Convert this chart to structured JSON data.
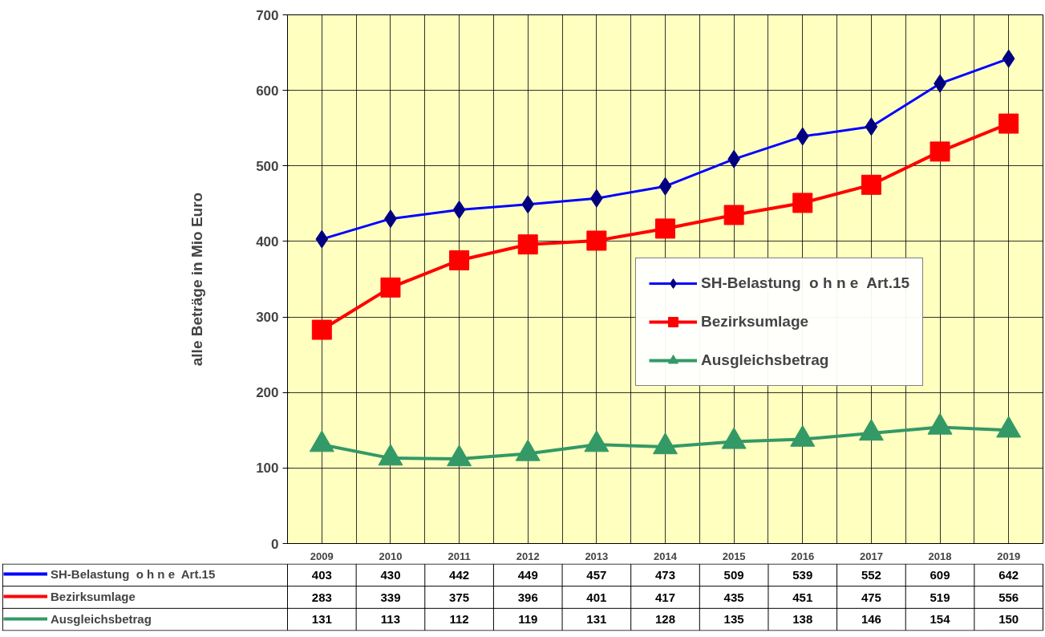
{
  "chart_data": {
    "type": "line",
    "ylabel": "alle Beträge in Mio Euro",
    "categories": [
      "2009",
      "2010",
      "2011",
      "2012",
      "2013",
      "2014",
      "2015",
      "2016",
      "2017",
      "2018",
      "2019"
    ],
    "series": [
      {
        "name": "SH-Belastung  o h n e  Art.15",
        "color": "#0000ff",
        "marker": "diamond",
        "values": [
          403,
          430,
          442,
          449,
          457,
          473,
          509,
          539,
          552,
          609,
          642
        ]
      },
      {
        "name": "Bezirksumlage",
        "color": "#ff0000",
        "marker": "square",
        "values": [
          283,
          339,
          375,
          396,
          401,
          417,
          435,
          451,
          475,
          519,
          556
        ]
      },
      {
        "name": "Ausgleichsbetrag",
        "color": "#339966",
        "marker": "triangle",
        "values": [
          131,
          113,
          112,
          119,
          131,
          128,
          135,
          138,
          146,
          154,
          150
        ]
      }
    ],
    "ylim": [
      0,
      700
    ],
    "yticks": [
      0,
      100,
      200,
      300,
      400,
      500,
      600,
      700
    ],
    "grid": true,
    "legend": "right",
    "data_labels": true
  }
}
